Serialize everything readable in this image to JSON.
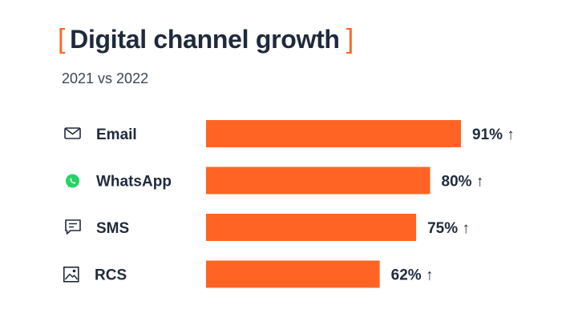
{
  "chart_data": {
    "type": "bar",
    "orientation": "horizontal",
    "title": "Digital channel growth",
    "subtitle": "2021 vs 2022",
    "categories": [
      "Email",
      "WhatsApp",
      "SMS",
      "RCS"
    ],
    "icons": [
      "envelope-icon",
      "whatsapp-icon",
      "chat-bubble-icon",
      "image-icon"
    ],
    "values": [
      91,
      80,
      75,
      62
    ],
    "value_labels": [
      "91% ↑",
      "80% ↑",
      "75% ↑",
      "62% ↑"
    ],
    "xlim": [
      0,
      91
    ],
    "grid": false,
    "colors": {
      "bar": "#ff6424",
      "bracket": "#ff6424",
      "text": "#1f2a3d",
      "whatsapp": "#25d366"
    }
  }
}
